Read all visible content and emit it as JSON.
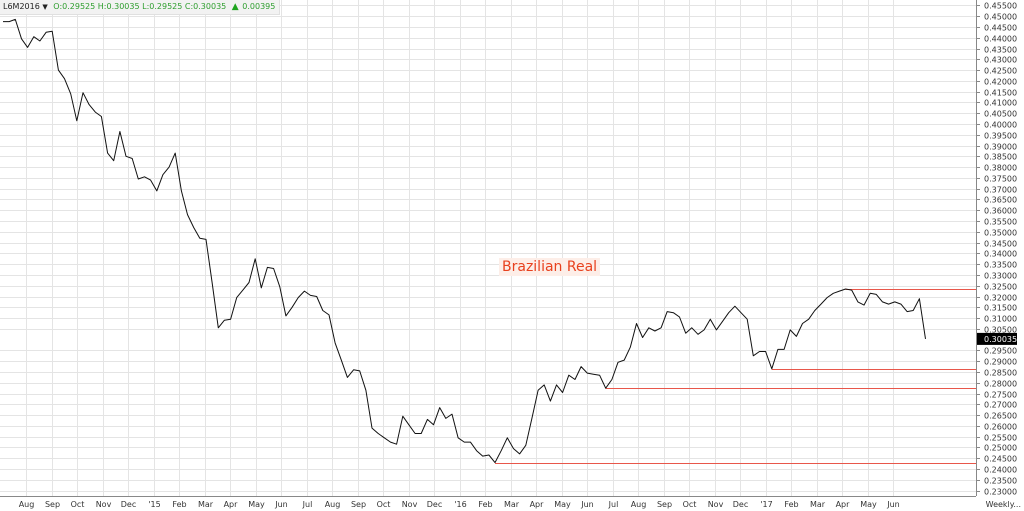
{
  "header": {
    "symbol": "L6M2016",
    "dropdown_icon": "caret-down-icon",
    "ohlc": "O:0.29525 H:0.30035 L:0.29525 C:0.30035",
    "change_icon": "up-triangle-icon",
    "change": "0.00395",
    "ohlc_color": "#2e9e2e",
    "change_icon_color": "#1fa51f"
  },
  "annotation_label": "Brazilian Real",
  "colors": {
    "line": "#111111",
    "support_lines": "#e8564a",
    "annotation": "#e8411e",
    "grid": "#e4e4e4",
    "price_box": "#000000"
  },
  "chart_data": {
    "type": "line",
    "title": "",
    "xlabel": "",
    "ylabel": "",
    "ylim": [
      0.2275,
      0.4575
    ],
    "y_ticks": [
      "0.45500",
      "0.45000",
      "0.44500",
      "0.44000",
      "0.43500",
      "0.43000",
      "0.42500",
      "0.42000",
      "0.41500",
      "0.41000",
      "0.40500",
      "0.40000",
      "0.39500",
      "0.39000",
      "0.38500",
      "0.38000",
      "0.37500",
      "0.37000",
      "0.36500",
      "0.36000",
      "0.35500",
      "0.35000",
      "0.34500",
      "0.34000",
      "0.33500",
      "0.33000",
      "0.32500",
      "0.32000",
      "0.31500",
      "0.31000",
      "0.30500",
      "0.30035",
      "0.29500",
      "0.29000",
      "0.28500",
      "0.28000",
      "0.27500",
      "0.27000",
      "0.26500",
      "0.26000",
      "0.25500",
      "0.25000",
      "0.24500",
      "0.24000",
      "0.23500",
      "0.23000"
    ],
    "x_ticks": [
      "Aug",
      "Sep",
      "Oct",
      "Nov",
      "Dec",
      "'15",
      "Feb",
      "Mar",
      "Apr",
      "May",
      "Jun",
      "Jul",
      "Aug",
      "Sep",
      "Oct",
      "Nov",
      "Dec",
      "'16",
      "Feb",
      "Mar",
      "Apr",
      "May",
      "Jun",
      "Jul",
      "Aug",
      "Sep",
      "Oct",
      "Nov",
      "Dec",
      "'17",
      "Feb",
      "Mar",
      "Apr",
      "May",
      "Jun",
      "Weekly..."
    ],
    "last_price": "0.30035",
    "grid": true,
    "series": [
      {
        "values": [
          0.4475,
          0.4475,
          0.4485,
          0.4395,
          0.4355,
          0.4405,
          0.4385,
          0.4425,
          0.443,
          0.425,
          0.421,
          0.414,
          0.4015,
          0.4145,
          0.409,
          0.4055,
          0.4035,
          0.3865,
          0.383,
          0.3965,
          0.385,
          0.384,
          0.3745,
          0.3755,
          0.374,
          0.369,
          0.3765,
          0.38,
          0.3865,
          0.369,
          0.358,
          0.352,
          0.347,
          0.3465,
          0.3265,
          0.3055,
          0.309,
          0.3095,
          0.3195,
          0.323,
          0.3265,
          0.3375,
          0.324,
          0.3335,
          0.333,
          0.3245,
          0.311,
          0.315,
          0.3195,
          0.3225,
          0.3205,
          0.32,
          0.3135,
          0.3115,
          0.2985,
          0.2905,
          0.2825,
          0.286,
          0.2855,
          0.2765,
          0.259,
          0.2565,
          0.2545,
          0.2525,
          0.2515,
          0.2645,
          0.2605,
          0.2565,
          0.2565,
          0.263,
          0.2605,
          0.2685,
          0.2635,
          0.2655,
          0.2545,
          0.2525,
          0.2525,
          0.2485,
          0.246,
          0.2465,
          0.243,
          0.2485,
          0.2545,
          0.2495,
          0.247,
          0.251,
          0.2635,
          0.2765,
          0.279,
          0.2715,
          0.279,
          0.2755,
          0.2835,
          0.2815,
          0.2875,
          0.2845,
          0.284,
          0.2835,
          0.2775,
          0.2815,
          0.2895,
          0.2905,
          0.2965,
          0.3075,
          0.301,
          0.3055,
          0.304,
          0.3055,
          0.313,
          0.3125,
          0.3105,
          0.303,
          0.3055,
          0.3025,
          0.3045,
          0.3095,
          0.3045,
          0.3085,
          0.3125,
          0.3155,
          0.3125,
          0.3095,
          0.2925,
          0.2945,
          0.2945,
          0.2865,
          0.2955,
          0.2955,
          0.3045,
          0.3015,
          0.3075,
          0.3095,
          0.3135,
          0.3165,
          0.3195,
          0.3215,
          0.3225,
          0.3235,
          0.323,
          0.3175,
          0.316,
          0.3215,
          0.321,
          0.3175,
          0.3165,
          0.3175,
          0.3165,
          0.313,
          0.3135,
          0.319,
          0.30035
        ]
      }
    ],
    "horizontal_lines": [
      {
        "value": 0.3235
      },
      {
        "value": 0.2865
      },
      {
        "value": 0.2775
      },
      {
        "value": 0.243
      }
    ]
  }
}
